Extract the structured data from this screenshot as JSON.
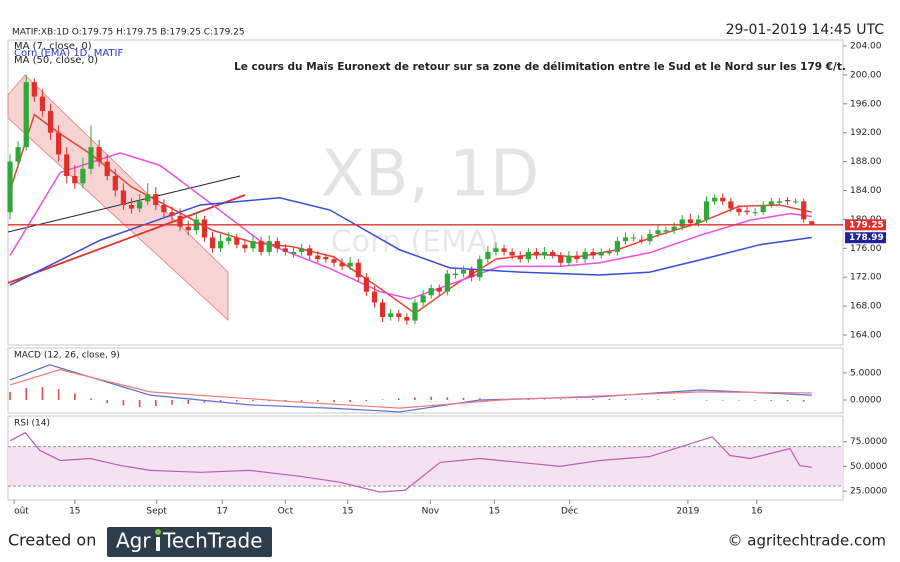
{
  "header": {
    "symbol_line": "MATIF:XB:1D O:179.75 H:179.75 B:179.25 C:179.25",
    "timestamp": "29-01-2019 14:45 UTC"
  },
  "chart_data": [
    {
      "type": "candlestick",
      "title": "Le cours du Maïs Euronext de retour sur sa zone de délimitation entre le Sud et le Nord sur les 179 €/t.",
      "watermark": [
        "XB, 1D",
        "Corn (EMA)"
      ],
      "legend": [
        {
          "text": "MA (7, close, 0)",
          "color": "#222222"
        },
        {
          "text": "Corn (EMA) 1D, MATIF",
          "color": "#2b35c8"
        },
        {
          "text": "MA (50, close, 0)",
          "color": "#222222"
        }
      ],
      "xlim": [
        -0.25,
        102.85
      ],
      "xticks": [
        {
          "value": 0.5,
          "label": "oût"
        },
        {
          "value": 8,
          "label": "15"
        },
        {
          "value": 18.1,
          "label": "Sept"
        },
        {
          "value": 26.2,
          "label": "17"
        },
        {
          "value": 34,
          "label": "Oct"
        },
        {
          "value": 41.7,
          "label": "15"
        },
        {
          "value": 51.9,
          "label": "Nov"
        },
        {
          "value": 59.8,
          "label": "15"
        },
        {
          "value": 69.1,
          "label": "Déc"
        },
        {
          "value": 83.7,
          "label": "2019"
        },
        {
          "value": 92.2,
          "label": "16"
        }
      ],
      "ylim": [
        162.62,
        204.83
      ],
      "yticks": [
        {
          "value": 164,
          "label": "164.00"
        },
        {
          "value": 168,
          "label": "168.00"
        },
        {
          "value": 172,
          "label": "172.00"
        },
        {
          "value": 176,
          "label": "176.00"
        },
        {
          "value": 180,
          "label": "180.00"
        },
        {
          "value": 184,
          "label": "184.00"
        },
        {
          "value": 188,
          "label": "188.00"
        },
        {
          "value": 192,
          "label": "192.00"
        },
        {
          "value": 196,
          "label": "196.00"
        },
        {
          "value": 200,
          "label": "200.00"
        },
        {
          "value": 204,
          "label": "204.00"
        }
      ],
      "up_color": "#2ea836",
      "down_color": "#e0302c",
      "open": [
        181,
        188,
        190,
        199,
        197,
        195,
        192,
        189,
        186,
        185,
        187,
        190,
        188,
        186,
        184,
        182,
        181.5,
        182.5,
        183.5,
        182,
        181,
        180.5,
        179,
        178.5,
        180,
        177.5,
        176,
        177,
        177.5,
        176.5,
        176,
        177,
        175.5,
        177,
        176,
        175.2,
        175.5,
        176,
        175,
        174.8,
        174.5,
        174,
        173.5,
        174,
        172,
        170,
        168.5,
        166.5,
        167,
        166.5,
        166,
        168.5,
        169.5,
        170.5,
        170,
        172.3,
        172.5,
        173,
        172,
        174.5,
        175.5,
        176,
        175.5,
        175,
        174.5,
        175.5,
        175,
        175.5,
        175,
        174,
        175,
        174.5,
        175.5,
        175,
        175.3,
        175.5,
        177,
        177.5,
        177.2,
        177,
        178,
        178.3,
        178.5,
        179,
        180,
        179.5,
        180,
        182.5,
        183,
        182.5,
        181.5,
        181.2,
        181,
        181,
        182,
        182.3,
        182.7,
        182.5,
        182.5,
        179.75
      ],
      "high": [
        189,
        190.8,
        200,
        199.5,
        198,
        196,
        193,
        190,
        187.5,
        188.5,
        193,
        191,
        189,
        187,
        185,
        183,
        183.5,
        185,
        184.5,
        182.8,
        181.8,
        181.5,
        179.8,
        181,
        180.5,
        178.3,
        178,
        178.3,
        178,
        177.3,
        177.8,
        177.6,
        177.8,
        177.5,
        176.6,
        176.2,
        176.6,
        176.5,
        175.6,
        175.3,
        175,
        174.6,
        174.8,
        174.5,
        172.6,
        170.8,
        169,
        167.6,
        167.5,
        167,
        169,
        170.2,
        171,
        171,
        173,
        173.2,
        173.6,
        173.5,
        175,
        176.3,
        176.8,
        176.5,
        176,
        175.6,
        176,
        176,
        176.2,
        175.8,
        175.5,
        175.6,
        175.6,
        176,
        176,
        176,
        176,
        177.6,
        178.2,
        178,
        177.8,
        178.6,
        179.2,
        179,
        179.6,
        180.6,
        180.8,
        180.6,
        183.2,
        183.5,
        183.6,
        183,
        182,
        181.8,
        181.6,
        182.5,
        183,
        183,
        183.1,
        182.9,
        182.9,
        179.75
      ],
      "low": [
        180,
        187.2,
        189.5,
        196.3,
        194.2,
        191,
        188,
        185,
        184.2,
        184.3,
        186.2,
        187.3,
        185.4,
        183.2,
        181.3,
        180.8,
        181,
        182,
        181.3,
        180.3,
        179.8,
        178.4,
        177.8,
        177.9,
        176.9,
        175.4,
        175.5,
        176.5,
        176,
        175.4,
        175.5,
        175,
        175,
        175.4,
        175,
        174.7,
        175,
        174.4,
        174,
        174,
        173.4,
        173,
        173,
        171.4,
        169.4,
        167.8,
        165.8,
        166,
        165.9,
        165.4,
        165.5,
        168,
        169,
        169.4,
        169.5,
        171.8,
        172,
        171.4,
        171.5,
        174,
        175,
        175,
        174.5,
        174,
        174,
        174.5,
        174.5,
        174.6,
        173.5,
        173.6,
        174,
        174,
        174.5,
        174.6,
        175,
        175,
        176.5,
        177,
        176.6,
        176.5,
        177.5,
        177.9,
        178,
        178.5,
        179,
        179,
        179.5,
        182,
        182,
        181,
        180.5,
        180.6,
        180.5,
        180.6,
        181.6,
        182,
        182,
        182.1,
        179.5,
        179.25
      ],
      "close": [
        188,
        190,
        199,
        197,
        195,
        192,
        189,
        186,
        185,
        187,
        190,
        188,
        186,
        184,
        182,
        181.5,
        182.5,
        183.5,
        182,
        181,
        180.5,
        179,
        178.5,
        180,
        177.5,
        176,
        177,
        177.5,
        176.5,
        176,
        177,
        175.5,
        177,
        176,
        175.5,
        175.5,
        176,
        175,
        174.5,
        174.5,
        174,
        173.5,
        174,
        172,
        170,
        168.5,
        166.5,
        167,
        166.5,
        166,
        168.5,
        169.5,
        170.5,
        170,
        172.5,
        172.5,
        173,
        172,
        174.5,
        175.5,
        176,
        175.5,
        175,
        174.5,
        175.5,
        175,
        175.5,
        175,
        174,
        175,
        174.5,
        175.5,
        175,
        175.5,
        175.5,
        177,
        177.5,
        177.5,
        177,
        178,
        178.5,
        178.5,
        179,
        180,
        179.5,
        180,
        182.5,
        183,
        182.5,
        181.5,
        181,
        181,
        181,
        182,
        182.5,
        182.5,
        182.5,
        182.5,
        180,
        179.25
      ],
      "series": [
        {
          "color": "#e8433a",
          "x": [
            0,
            3,
            6,
            10,
            15,
            20,
            25,
            30,
            35,
            40,
            45,
            50,
            55,
            60,
            65,
            70,
            75,
            80,
            85,
            90,
            95,
            99
          ],
          "values": [
            184,
            194.5,
            192,
            189,
            184.5,
            181.5,
            178.5,
            176.8,
            176.2,
            174.8,
            171,
            167,
            171,
            174.5,
            175.2,
            174.8,
            175.8,
            177.8,
            179.5,
            181.8,
            182,
            181
          ]
        },
        {
          "color": "#ee4fe0",
          "x": [
            0,
            6.2,
            13.6,
            18.5,
            23.5,
            30.9,
            39.5,
            45.7,
            49.4,
            54.3,
            60.5,
            67.9,
            72.8,
            79,
            85.2,
            91.4,
            96.3,
            99
          ],
          "values": [
            175,
            186.5,
            189.2,
            187.5,
            183.3,
            177,
            173.2,
            170,
            169,
            171,
            173.5,
            173.5,
            174,
            175.4,
            177.8,
            179.9,
            180.8,
            180.4
          ]
        },
        {
          "color": "#3a4bd6",
          "x": [
            0,
            11.1,
            23.5,
            33.3,
            39.5,
            48.1,
            54.3,
            63,
            72.8,
            79,
            85.2,
            92.6,
            99
          ],
          "values": [
            170.9,
            177.1,
            182,
            183,
            181.3,
            175.8,
            173.3,
            172.7,
            172.3,
            172.7,
            174.4,
            176.5,
            177.5
          ]
        }
      ],
      "price_tags": [
        {
          "value": 179.25,
          "color": "#e0302c"
        },
        {
          "value": 178.99,
          "color": "#1c2499"
        }
      ]
    },
    {
      "type": "macd",
      "label": "MACD (12, 26, close, 9)",
      "ylim": [
        -2.4,
        9.6
      ],
      "yticks": [
        {
          "value": 5,
          "label": "5.0000"
        },
        {
          "value": 0,
          "label": "0.0000"
        }
      ],
      "macd": {
        "color": "#5b6fd6",
        "x": [
          0,
          4.9,
          17.3,
          29.6,
          39.5,
          48.1,
          58,
          72.8,
          85.2,
          99
        ],
        "values": [
          3.7,
          6.5,
          0.9,
          -0.9,
          -1.5,
          -2.2,
          0,
          0.6,
          1.85,
          0.9
        ]
      },
      "signal": {
        "color": "#f07a7a",
        "x": [
          0,
          6.2,
          17.3,
          35.8,
          48.1,
          60.5,
          85.2,
          99
        ],
        "values": [
          2.8,
          5.6,
          1.5,
          -0.4,
          -1.5,
          0,
          1.5,
          1.3
        ]
      },
      "histogram": {
        "color": "#e05050",
        "x": [
          0,
          2,
          4,
          6,
          8,
          10,
          12,
          14,
          16,
          18,
          20,
          22,
          24,
          26,
          28,
          30,
          32,
          34,
          36,
          38,
          40,
          42,
          44,
          46,
          48,
          50,
          52,
          54,
          56,
          58,
          60,
          62,
          64,
          66,
          68,
          70,
          72,
          74,
          76,
          78,
          80,
          82,
          84,
          86,
          88,
          90,
          92,
          94,
          96,
          98
        ],
        "values": [
          1.5,
          2.2,
          2.4,
          2.0,
          1.2,
          0.3,
          -0.6,
          -1.0,
          -1.3,
          -1.1,
          -0.9,
          -0.7,
          -0.5,
          -0.4,
          -0.3,
          -0.2,
          -0.2,
          -0.2,
          -0.3,
          -0.3,
          -0.4,
          -0.4,
          -0.2,
          0.1,
          0.3,
          0.5,
          0.6,
          0.5,
          0.4,
          0.3,
          0.2,
          0.2,
          0.1,
          0.1,
          0.1,
          0.1,
          0.2,
          0.2,
          0.2,
          0.1,
          0.1,
          0.1,
          0.0,
          -0.1,
          -0.1,
          -0.1,
          -0.1,
          -0.2,
          -0.2,
          -0.3
        ]
      }
    },
    {
      "type": "line",
      "label": "RSI (14)",
      "ylim": [
        16,
        101
      ],
      "yticks": [
        {
          "value": 75,
          "label": "75.0000"
        },
        {
          "value": 50,
          "label": "50.0000"
        },
        {
          "value": 25,
          "label": "25.0000"
        }
      ],
      "band": [
        30,
        70
      ],
      "band_color": "#f4e2f2",
      "series": [
        {
          "color": "#c15bb6",
          "x": [
            0,
            1.9,
            3.7,
            6.2,
            9.9,
            13.6,
            17.3,
            23.5,
            29.6,
            35.8,
            40.7,
            45.7,
            48.8,
            53.1,
            58,
            63,
            67.9,
            72.8,
            79,
            85.2,
            86.7,
            88.9,
            91.4,
            96.3,
            97.5,
            99
          ],
          "values": [
            76,
            84,
            66,
            56,
            58,
            51,
            46,
            44,
            46,
            40,
            34,
            24,
            26,
            54,
            58,
            54,
            50,
            56,
            60,
            76,
            80,
            61,
            58,
            68,
            51,
            49
          ]
        }
      ]
    }
  ],
  "footer": {
    "created": "Created on",
    "logo": [
      "Agr",
      "TechTrade"
    ],
    "site": "© agritechtrade.com"
  }
}
